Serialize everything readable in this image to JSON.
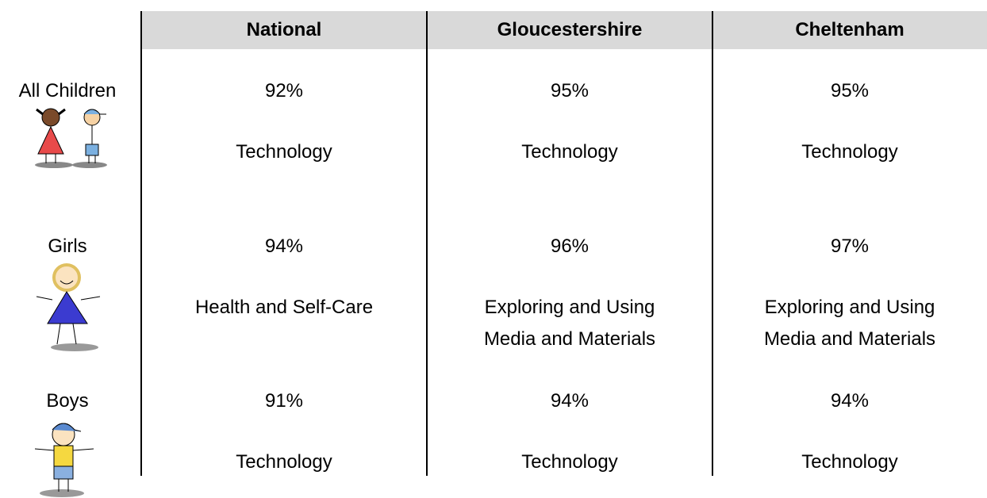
{
  "table": {
    "columns": [
      "National",
      "Gloucestershire",
      "Cheltenham"
    ],
    "rows": [
      {
        "label": "All Children",
        "percentages": [
          "92%",
          "95%",
          "95%"
        ],
        "areas": [
          "Technology",
          "Technology",
          "Technology"
        ]
      },
      {
        "label": "Girls",
        "percentages": [
          "94%",
          "96%",
          "97%"
        ],
        "areas": [
          "Health and Self-Care",
          "Exploring and Using Media and Materials",
          "Exploring and Using Media and Materials"
        ]
      },
      {
        "label": "Boys",
        "percentages": [
          "91%",
          "94%",
          "94%"
        ],
        "areas": [
          "Technology",
          "Technology",
          "Technology"
        ]
      }
    ]
  }
}
